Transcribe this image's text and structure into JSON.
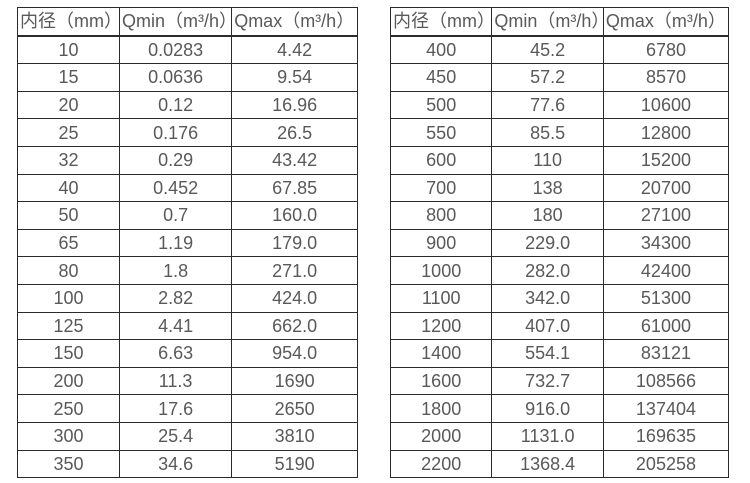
{
  "colors": {
    "background": "#ffffff",
    "border": "#2b2b2b",
    "text": "#595959"
  },
  "tables": [
    {
      "id": "small-diameter-table",
      "headers": [
        "内径（mm）",
        "Qmin（m³/h）",
        "Qmax（m³/h）"
      ],
      "rows": [
        [
          "10",
          "0.0283",
          "4.42"
        ],
        [
          "15",
          "0.0636",
          "9.54"
        ],
        [
          "20",
          "0.12",
          "16.96"
        ],
        [
          "25",
          "0.176",
          "26.5"
        ],
        [
          "32",
          "0.29",
          "43.42"
        ],
        [
          "40",
          "0.452",
          "67.85"
        ],
        [
          "50",
          "0.7",
          "160.0"
        ],
        [
          "65",
          "1.19",
          "179.0"
        ],
        [
          "80",
          "1.8",
          "271.0"
        ],
        [
          "100",
          "2.82",
          "424.0"
        ],
        [
          "125",
          "4.41",
          "662.0"
        ],
        [
          "150",
          "6.63",
          "954.0"
        ],
        [
          "200",
          "11.3",
          "1690"
        ],
        [
          "250",
          "17.6",
          "2650"
        ],
        [
          "300",
          "25.4",
          "3810"
        ],
        [
          "350",
          "34.6",
          "5190"
        ]
      ]
    },
    {
      "id": "large-diameter-table",
      "headers": [
        "内径（mm）",
        "Qmin（m³/h）",
        "Qmax（m³/h）"
      ],
      "rows": [
        [
          "400",
          "45.2",
          "6780"
        ],
        [
          "450",
          "57.2",
          "8570"
        ],
        [
          "500",
          "77.6",
          "10600"
        ],
        [
          "550",
          "85.5",
          "12800"
        ],
        [
          "600",
          "110",
          "15200"
        ],
        [
          "700",
          "138",
          "20700"
        ],
        [
          "800",
          "180",
          "27100"
        ],
        [
          "900",
          "229.0",
          "34300"
        ],
        [
          "1000",
          "282.0",
          "42400"
        ],
        [
          "1100",
          "342.0",
          "51300"
        ],
        [
          "1200",
          "407.0",
          "61000"
        ],
        [
          "1400",
          "554.1",
          "83121"
        ],
        [
          "1600",
          "732.7",
          "108566"
        ],
        [
          "1800",
          "916.0",
          "137404"
        ],
        [
          "2000",
          "1131.0",
          "169635"
        ],
        [
          "2200",
          "1368.4",
          "205258"
        ]
      ]
    }
  ]
}
